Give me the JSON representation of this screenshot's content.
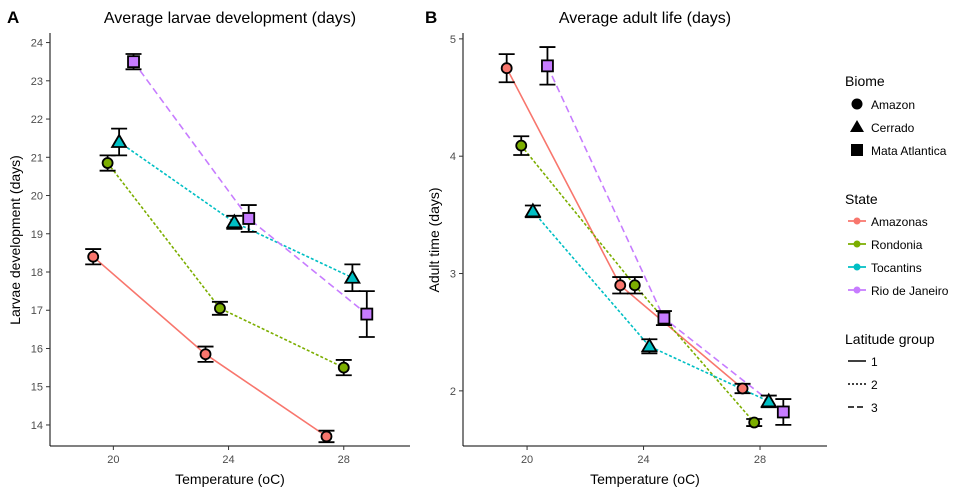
{
  "chart_data": [
    {
      "type": "scatter",
      "panel_tag": "A",
      "title": "Average larvae development (days)",
      "xlabel": "Temperature (oC)",
      "ylabel": "Larvae development (days)",
      "xlim": [
        17.8,
        30.3
      ],
      "ylim": [
        13.45,
        24.25
      ],
      "x_ticks": [
        20,
        24,
        28
      ],
      "y_ticks": [
        14,
        15,
        16,
        17,
        18,
        19,
        20,
        21,
        22,
        23,
        24
      ],
      "grid": false,
      "series": [
        {
          "name": "Amazonas",
          "shape": "circle",
          "linetype": "solid",
          "points": [
            {
              "x": 19.3,
              "y": 18.4,
              "err": 0.2
            },
            {
              "x": 23.2,
              "y": 15.85,
              "err": 0.2
            },
            {
              "x": 27.4,
              "y": 13.7,
              "err": 0.15
            }
          ]
        },
        {
          "name": "Rondonia",
          "shape": "circle",
          "linetype": "dotted",
          "points": [
            {
              "x": 19.8,
              "y": 20.85,
              "err": 0.2
            },
            {
              "x": 23.7,
              "y": 17.05,
              "err": 0.17
            },
            {
              "x": 28.0,
              "y": 15.5,
              "err": 0.2
            }
          ]
        },
        {
          "name": "Tocantins",
          "shape": "triangle",
          "linetype": "dotted",
          "points": [
            {
              "x": 20.2,
              "y": 21.4,
              "err": 0.35
            },
            {
              "x": 24.2,
              "y": 19.3,
              "err": 0.17
            },
            {
              "x": 28.3,
              "y": 17.85,
              "err": 0.35
            }
          ]
        },
        {
          "name": "Rio de Janeiro",
          "shape": "square",
          "linetype": "dashed",
          "points": [
            {
              "x": 20.7,
              "y": 23.5,
              "err": 0.2
            },
            {
              "x": 24.7,
              "y": 19.4,
              "err": 0.35
            },
            {
              "x": 28.8,
              "y": 16.9,
              "err": 0.6
            }
          ]
        }
      ]
    },
    {
      "type": "scatter",
      "panel_tag": "B",
      "title": "Average adult life (days)",
      "xlabel": "Temperature (oC)",
      "ylabel": "Adult time (days)",
      "xlim": [
        17.8,
        30.3
      ],
      "ylim": [
        1.53,
        5.05
      ],
      "x_ticks": [
        20,
        24,
        28
      ],
      "y_ticks": [
        2,
        3,
        4,
        5
      ],
      "grid": false,
      "series": [
        {
          "name": "Amazonas",
          "shape": "circle",
          "linetype": "solid",
          "points": [
            {
              "x": 19.3,
              "y": 4.75,
              "err": 0.12
            },
            {
              "x": 23.2,
              "y": 2.9,
              "err": 0.07
            },
            {
              "x": 27.4,
              "y": 2.02,
              "err": 0.04
            }
          ]
        },
        {
          "name": "Rondonia",
          "shape": "circle",
          "linetype": "dotted",
          "points": [
            {
              "x": 19.8,
              "y": 4.09,
              "err": 0.08
            },
            {
              "x": 23.7,
              "y": 2.9,
              "err": 0.07
            },
            {
              "x": 27.8,
              "y": 1.73,
              "err": 0.03
            }
          ]
        },
        {
          "name": "Tocantins",
          "shape": "triangle",
          "linetype": "dotted",
          "points": [
            {
              "x": 20.2,
              "y": 3.53,
              "err": 0.05
            },
            {
              "x": 24.2,
              "y": 2.38,
              "err": 0.06
            },
            {
              "x": 28.3,
              "y": 1.91,
              "err": 0.05
            }
          ]
        },
        {
          "name": "Rio de Janeiro",
          "shape": "square",
          "linetype": "dashed",
          "points": [
            {
              "x": 20.7,
              "y": 4.77,
              "err": 0.16
            },
            {
              "x": 24.7,
              "y": 2.62,
              "err": 0.06
            },
            {
              "x": 28.8,
              "y": 1.82,
              "err": 0.11
            }
          ]
        }
      ]
    }
  ],
  "legend": {
    "placement": "right",
    "biome": {
      "title": "Biome",
      "items": [
        {
          "label": "Amazon",
          "shape": "circle"
        },
        {
          "label": "Cerrado",
          "shape": "triangle"
        },
        {
          "label": "Mata Atlantica",
          "shape": "square"
        }
      ]
    },
    "state": {
      "title": "State",
      "items": [
        {
          "label": "Amazonas",
          "color": "#F8766D"
        },
        {
          "label": "Rondonia",
          "color": "#7CAE00"
        },
        {
          "label": "Tocantins",
          "color": "#00BFC4"
        },
        {
          "label": "Rio de Janeiro",
          "color": "#C77CFF"
        }
      ]
    },
    "latitude": {
      "title": "Latitude group",
      "items": [
        {
          "label": "1",
          "linetype": "solid"
        },
        {
          "label": "2",
          "linetype": "dotted"
        },
        {
          "label": "3",
          "linetype": "dashed"
        }
      ]
    }
  },
  "colors": {
    "Amazonas": "#F8766D",
    "Rondonia": "#7CAE00",
    "Tocantins": "#00BFC4",
    "Rio de Janeiro": "#C77CFF"
  }
}
